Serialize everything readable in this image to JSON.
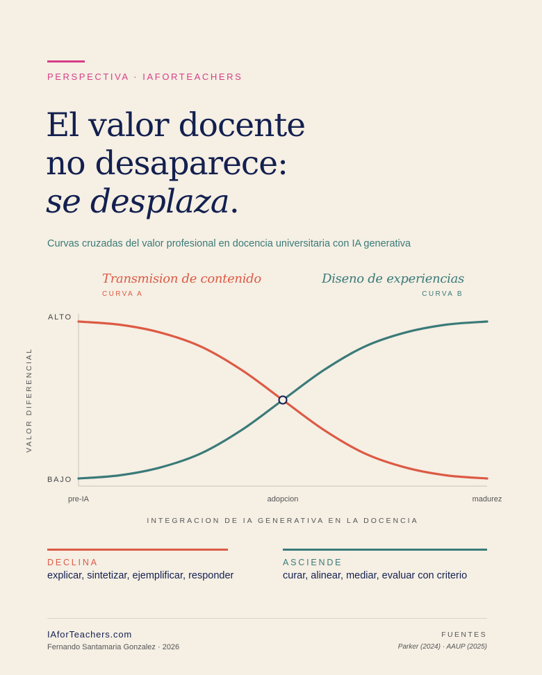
{
  "header": {
    "kicker": "PERSPECTIVA · IAFORTEACHERS",
    "title_line1": "El valor docente",
    "title_line2": "no desaparece:",
    "title_line3_italic": "se desplaza",
    "title_line3_end": ".",
    "subtitle": "Curvas cruzadas del valor profesional en docencia universitaria con IA generativa"
  },
  "colors": {
    "accent_pink": "#d63e86",
    "curve_a": "#dc5a44",
    "curve_b": "#3a7a78",
    "navy": "#13204f",
    "background": "#f5efe4"
  },
  "chart_data": {
    "type": "line",
    "title": "",
    "xlabel": "INTEGRACION DE IA GENERATIVA EN LA DOCENCIA",
    "ylabel": "VALOR DIFERENCIAL",
    "x_ticks": [
      {
        "label": "pre-IA",
        "value": 0
      },
      {
        "label": "adopcion",
        "value": 0.5
      },
      {
        "label": "madurez",
        "value": 1
      }
    ],
    "y_ticks": [
      {
        "label": "ALTO",
        "value": 1
      },
      {
        "label": "BAJO",
        "value": 0
      }
    ],
    "xlim": [
      0,
      1
    ],
    "ylim": [
      0,
      1
    ],
    "grid": false,
    "series": [
      {
        "name": "Transmision de contenido",
        "tag": "CURVA A",
        "trend": "declining",
        "x": [
          0,
          0.1,
          0.2,
          0.3,
          0.4,
          0.5,
          0.6,
          0.7,
          0.8,
          0.9,
          1
        ],
        "values": [
          1,
          0.98,
          0.93,
          0.84,
          0.69,
          0.5,
          0.31,
          0.16,
          0.07,
          0.02,
          0
        ]
      },
      {
        "name": "Diseno de experiencias",
        "tag": "CURVA B",
        "trend": "rising",
        "x": [
          0,
          0.1,
          0.2,
          0.3,
          0.4,
          0.5,
          0.6,
          0.7,
          0.8,
          0.9,
          1
        ],
        "values": [
          0,
          0.02,
          0.07,
          0.16,
          0.31,
          0.5,
          0.69,
          0.84,
          0.93,
          0.98,
          1
        ]
      }
    ],
    "annotations": [
      {
        "type": "crossing-point",
        "x": 0.5,
        "y": 0.5
      }
    ]
  },
  "legend": {
    "declina": {
      "label": "DECLINA",
      "text": "explicar, sintetizar, ejemplificar, responder"
    },
    "asciende": {
      "label": "ASCIENDE",
      "text": "curar, alinear, mediar, evaluar con criterio"
    }
  },
  "footer": {
    "brand": "IAforTeachers.com",
    "author": "Fernando Santamaria Gonzalez · 2026",
    "sources_title": "FUENTES",
    "sources": "Parker (2024) · AAUP (2025)"
  }
}
